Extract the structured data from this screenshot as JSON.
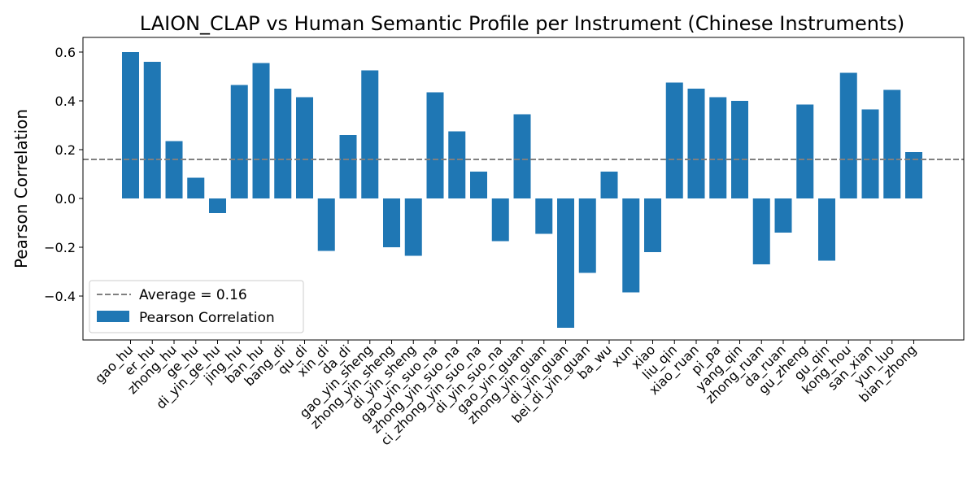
{
  "chart_data": {
    "type": "bar",
    "title": "LAION_CLAP vs Human Semantic Profile per Instrument (Chinese Instruments)",
    "xlabel": "",
    "ylabel": "Pearson Correlation",
    "ylim": [
      -0.58,
      0.66
    ],
    "yticks": [
      -0.4,
      -0.2,
      0.0,
      0.2,
      0.4,
      0.6
    ],
    "ytick_labels": [
      "−0.4",
      "−0.2",
      "0.0",
      "0.2",
      "0.4",
      "0.6"
    ],
    "categories": [
      "gao_hu",
      "er_hu",
      "zhong_hu",
      "ge_hu",
      "di_yin_ge_hu",
      "jing_hu",
      "ban_hu",
      "bang_di",
      "qu_di",
      "xin_di",
      "da_di",
      "gao_yin_sheng",
      "zhong_yin_sheng",
      "di_yin_sheng",
      "gao_yin_suo_na",
      "zhong_yin_suo_na",
      "ci_zhong_yin_suo_na",
      "di_yin_suo_na",
      "gao_yin_guan",
      "zhong_yin_guan",
      "di_yin_guan",
      "bei_di_yin_guan",
      "ba_wu",
      "xun",
      "xiao",
      "liu_qin",
      "xiao_ruan",
      "pi_pa",
      "yang_qin",
      "zhong_ruan",
      "da_ruan",
      "gu_zheng",
      "gu_qin",
      "kong_hou",
      "san_xian",
      "yun_luo",
      "bian_zhong"
    ],
    "series": [
      {
        "name": "Pearson Correlation",
        "color": "#1f77b4",
        "values": [
          0.6,
          0.56,
          0.235,
          0.085,
          -0.06,
          0.465,
          0.555,
          0.45,
          0.415,
          -0.215,
          0.26,
          0.525,
          -0.2,
          -0.235,
          0.435,
          0.275,
          0.11,
          -0.175,
          0.345,
          -0.145,
          -0.53,
          -0.305,
          0.11,
          -0.385,
          -0.22,
          0.475,
          0.45,
          0.415,
          0.4,
          -0.27,
          -0.14,
          0.385,
          -0.255,
          0.515,
          0.365,
          0.445,
          0.19
        ]
      }
    ],
    "reference_line": {
      "label": "Average = 0.16",
      "value": 0.16,
      "color": "#808080",
      "style": "dashed"
    },
    "legend_placement": "lower-left",
    "grid": false
  }
}
